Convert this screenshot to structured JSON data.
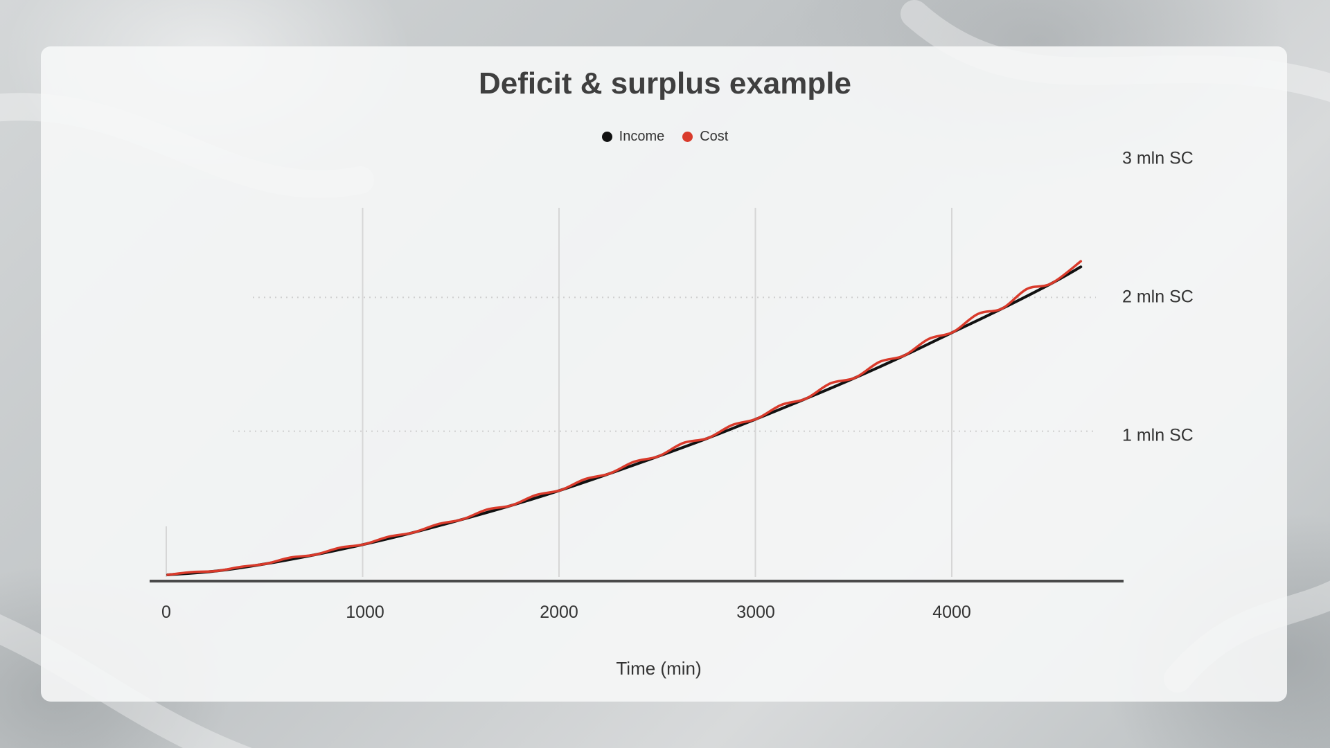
{
  "chart_data": {
    "type": "line",
    "title": "Deficit & surplus example",
    "xlabel": "Time (min)",
    "ylabel": "",
    "xlim": [
      0,
      4700
    ],
    "ylim": [
      0,
      3000000
    ],
    "x_ticks": [
      {
        "value": 0,
        "label": "0"
      },
      {
        "value": 1000,
        "label": "1000"
      },
      {
        "value": 2000,
        "label": "2000"
      },
      {
        "value": 3000,
        "label": "3000"
      },
      {
        "value": 4000,
        "label": "4000"
      }
    ],
    "y_ticks": [
      {
        "value": 1000000,
        "label": "1 mln SC"
      },
      {
        "value": 2000000,
        "label": "2 mln SC"
      },
      {
        "value": 3000000,
        "label": "3 mln SC"
      }
    ],
    "grid": {
      "x": true,
      "y": true
    },
    "legend_position": "top-center",
    "series": [
      {
        "name": "Income",
        "color": "#111111",
        "x": [
          0,
          250,
          500,
          750,
          1000,
          1250,
          1500,
          1750,
          2000,
          2250,
          2500,
          2750,
          3000,
          3250,
          3500,
          3750,
          4000,
          4250,
          4500,
          4650
        ],
        "y": [
          0,
          28000,
          80000,
          145000,
          220000,
          305000,
          400000,
          500000,
          610000,
          730000,
          855000,
          985000,
          1125000,
          1270000,
          1420000,
          1580000,
          1750000,
          1920000,
          2100000,
          2220000
        ]
      },
      {
        "name": "Cost",
        "color": "#d93a2b",
        "x": [
          0,
          125,
          250,
          375,
          500,
          625,
          750,
          875,
          1000,
          1125,
          1250,
          1375,
          1500,
          1625,
          1750,
          1875,
          2000,
          2125,
          2250,
          2375,
          2500,
          2625,
          2750,
          2875,
          3000,
          3125,
          3250,
          3375,
          3500,
          3625,
          3750,
          3875,
          4000,
          4125,
          4250,
          4375,
          4500,
          4650
        ],
        "y": [
          0,
          20000,
          28000,
          58000,
          80000,
          125000,
          145000,
          195000,
          220000,
          275000,
          305000,
          365000,
          400000,
          470000,
          500000,
          575000,
          610000,
          690000,
          730000,
          815000,
          855000,
          950000,
          985000,
          1080000,
          1125000,
          1225000,
          1270000,
          1380000,
          1420000,
          1535000,
          1580000,
          1700000,
          1750000,
          1880000,
          1920000,
          2060000,
          2100000,
          2260000
        ]
      }
    ]
  }
}
